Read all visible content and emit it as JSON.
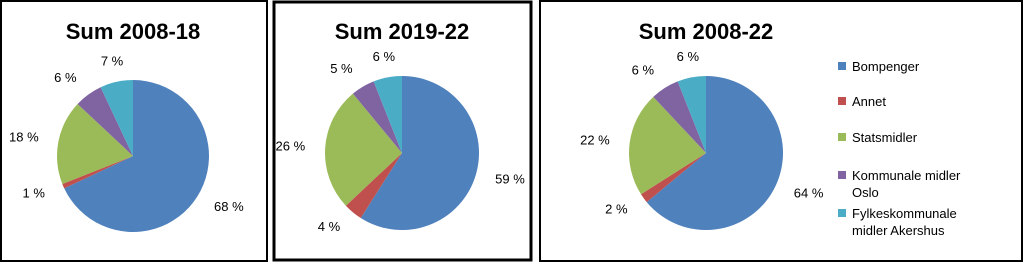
{
  "chart_data": [
    {
      "type": "pie",
      "title": "Sum 2008-18",
      "categories": [
        "Bompenger",
        "Annet",
        "Statsmidler",
        "Kommunale midler Oslo",
        "Fylkeskommunale midler Akershus"
      ],
      "values": [
        68,
        1,
        18,
        6,
        7
      ],
      "value_labels": [
        "68 %",
        "1 %",
        "18 %",
        "6 %",
        "7 %"
      ],
      "colors": [
        "#4f81bd",
        "#c0504d",
        "#9bbb59",
        "#8064a2",
        "#4bacc6"
      ],
      "legend": false
    },
    {
      "type": "pie",
      "title": "Sum 2019-22",
      "categories": [
        "Bompenger",
        "Annet",
        "Statsmidler",
        "Kommunale midler Oslo",
        "Fylkeskommunale midler Akershus"
      ],
      "values": [
        59,
        4,
        26,
        5,
        6
      ],
      "value_labels": [
        "59 %",
        "4 %",
        "26 %",
        "5 %",
        "6 %"
      ],
      "colors": [
        "#4f81bd",
        "#c0504d",
        "#9bbb59",
        "#8064a2",
        "#4bacc6"
      ],
      "legend": false
    },
    {
      "type": "pie",
      "title": "Sum 2008-22",
      "categories": [
        "Bompenger",
        "Annet",
        "Statsmidler",
        "Kommunale midler Oslo",
        "Fylkeskommunale midler Akershus"
      ],
      "values": [
        64,
        2,
        22,
        6,
        6
      ],
      "value_labels": [
        "64 %",
        "2 %",
        "22 %",
        "6 %",
        "6 %"
      ],
      "colors": [
        "#4f81bd",
        "#c0504d",
        "#9bbb59",
        "#8064a2",
        "#4bacc6"
      ],
      "legend": "right"
    }
  ]
}
